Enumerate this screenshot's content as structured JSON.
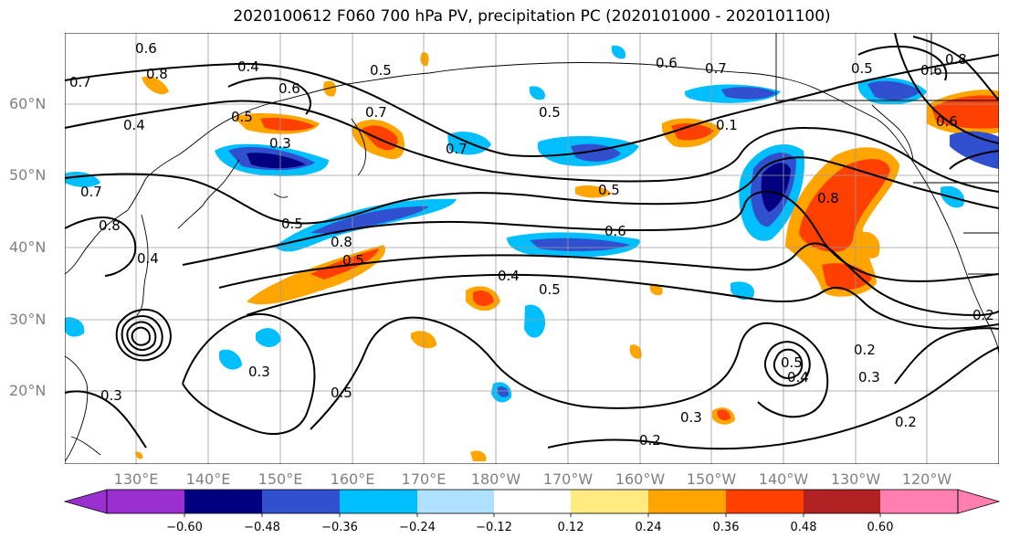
{
  "title": "2020100612 F060 700 hPa PV, precipitation PC (2020101000 - 2020101100)",
  "lat_labels": [
    "60°N",
    "50°N",
    "40°N",
    "30°N",
    "20°N"
  ],
  "lon_labels": [
    "130°E",
    "140°E",
    "150°E",
    "160°E",
    "170°E",
    "180°W",
    "170°W",
    "160°W",
    "150°W",
    "140°W",
    "130°W",
    "120°W"
  ],
  "colorbar": {
    "ticks": [
      "−0.60",
      "−0.48",
      "−0.36",
      "−0.24",
      "−0.12",
      "0.12",
      "0.24",
      "0.36",
      "0.48",
      "0.60"
    ],
    "colors": [
      "#9b30d0",
      "#000080",
      "#3050d0",
      "#00bfff",
      "#b0e0ff",
      "#ffffff",
      "#ffeb80",
      "#ffa500",
      "#ff4000",
      "#b22222",
      "#ff80b0"
    ]
  },
  "contour_labels": [
    "0.6",
    "0.8",
    "0.4",
    "0.7",
    "0.5",
    "0.6",
    "0.7",
    "0.5",
    "0.6",
    "0.6",
    "0.8",
    "0.7",
    "0.4",
    "0.5",
    "0.3",
    "0.7",
    "0.5",
    "0.1",
    "0.5",
    "0.8",
    "0.4",
    "0.5",
    "0.8",
    "0.5",
    "0.6",
    "0.4",
    "0.5",
    "0.3",
    "0.5",
    "0.2",
    "0.3",
    "0.2",
    "0.3",
    "0.2",
    "0.3",
    "0.7",
    "0.8",
    "0.6",
    "0.5",
    "0.4",
    "0.2"
  ],
  "palette": {
    "contour": "#000000",
    "coast": "#000000",
    "grid": "#9a9a9a",
    "axis_text": "#808080"
  }
}
